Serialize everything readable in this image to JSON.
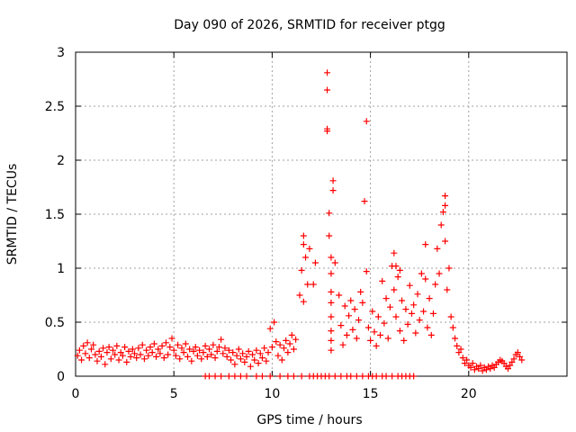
{
  "chart_data": {
    "type": "scatter",
    "title": "Day 090 of 2026, SRMTID for receiver ptgg",
    "xlabel": "GPS time / hours",
    "ylabel": "SRMTID / TECUs",
    "xlim": [
      0,
      25
    ],
    "ylim": [
      0,
      3
    ],
    "xticks": [
      0,
      5,
      10,
      15,
      20
    ],
    "yticks": [
      0,
      0.5,
      1,
      1.5,
      2,
      2.5,
      3
    ],
    "ytick_labels": [
      "0",
      "0.5",
      "1",
      "1.5",
      "2",
      "2.5",
      "3"
    ],
    "grid": true,
    "marker": "+",
    "color": "#ff0000",
    "series": [
      {
        "name": "SRMTID",
        "points": [
          [
            0.1,
            0.19
          ],
          [
            0.2,
            0.24
          ],
          [
            0.3,
            0.15
          ],
          [
            0.4,
            0.28
          ],
          [
            0.5,
            0.21
          ],
          [
            0.6,
            0.31
          ],
          [
            0.7,
            0.17
          ],
          [
            0.8,
            0.25
          ],
          [
            0.9,
            0.29
          ],
          [
            1.0,
            0.2
          ],
          [
            1.1,
            0.14
          ],
          [
            1.2,
            0.23
          ],
          [
            1.3,
            0.18
          ],
          [
            1.4,
            0.26
          ],
          [
            1.5,
            0.11
          ],
          [
            1.6,
            0.22
          ],
          [
            1.7,
            0.27
          ],
          [
            1.8,
            0.16
          ],
          [
            1.9,
            0.24
          ],
          [
            2.0,
            0.2
          ],
          [
            2.1,
            0.28
          ],
          [
            2.2,
            0.15
          ],
          [
            2.3,
            0.22
          ],
          [
            2.4,
            0.19
          ],
          [
            2.5,
            0.27
          ],
          [
            2.6,
            0.13
          ],
          [
            2.7,
            0.23
          ],
          [
            2.8,
            0.18
          ],
          [
            2.9,
            0.25
          ],
          [
            3.0,
            0.21
          ],
          [
            3.1,
            0.17
          ],
          [
            3.2,
            0.26
          ],
          [
            3.3,
            0.2
          ],
          [
            3.4,
            0.29
          ],
          [
            3.5,
            0.16
          ],
          [
            3.6,
            0.24
          ],
          [
            3.7,
            0.19
          ],
          [
            3.8,
            0.27
          ],
          [
            3.9,
            0.22
          ],
          [
            4.0,
            0.3
          ],
          [
            4.1,
            0.18
          ],
          [
            4.2,
            0.25
          ],
          [
            4.3,
            0.21
          ],
          [
            4.4,
            0.28
          ],
          [
            4.5,
            0.17
          ],
          [
            4.6,
            0.31
          ],
          [
            4.7,
            0.2
          ],
          [
            4.8,
            0.27
          ],
          [
            4.9,
            0.35
          ],
          [
            5.0,
            0.24
          ],
          [
            5.1,
            0.19
          ],
          [
            5.2,
            0.29
          ],
          [
            5.3,
            0.16
          ],
          [
            5.4,
            0.26
          ],
          [
            5.5,
            0.22
          ],
          [
            5.6,
            0.3
          ],
          [
            5.7,
            0.18
          ],
          [
            5.8,
            0.25
          ],
          [
            5.9,
            0.14
          ],
          [
            6.0,
            0.23
          ],
          [
            6.1,
            0.27
          ],
          [
            6.2,
            0.19
          ],
          [
            6.3,
            0.24
          ],
          [
            6.4,
            0.16
          ],
          [
            6.5,
            0.22
          ],
          [
            6.6,
            0.28
          ],
          [
            6.7,
            0.18
          ],
          [
            6.8,
            0.25
          ],
          [
            6.9,
            0.2
          ],
          [
            7.0,
            0.29
          ],
          [
            7.1,
            0.17
          ],
          [
            7.2,
            0.23
          ],
          [
            7.3,
            0.27
          ],
          [
            7.4,
            0.34
          ],
          [
            7.5,
            0.21
          ],
          [
            7.6,
            0.26
          ],
          [
            7.7,
            0.18
          ],
          [
            7.8,
            0.24
          ],
          [
            7.9,
            0.15
          ],
          [
            8.0,
            0.22
          ],
          [
            8.1,
            0.11
          ],
          [
            8.2,
            0.19
          ],
          [
            8.3,
            0.25
          ],
          [
            8.4,
            0.16
          ],
          [
            8.5,
            0.21
          ],
          [
            8.6,
            0.13
          ],
          [
            8.7,
            0.18
          ],
          [
            8.8,
            0.23
          ],
          [
            8.9,
            0.09
          ],
          [
            9.0,
            0.2
          ],
          [
            9.1,
            0.15
          ],
          [
            9.2,
            0.24
          ],
          [
            9.3,
            0.12
          ],
          [
            9.4,
            0.21
          ],
          [
            9.5,
            0.17
          ],
          [
            9.6,
            0.26
          ],
          [
            9.7,
            0.14
          ],
          [
            9.8,
            0.22
          ],
          [
            9.9,
            0.44
          ],
          [
            10.0,
            0.27
          ],
          [
            10.1,
            0.5
          ],
          [
            10.2,
            0.32
          ],
          [
            10.3,
            0.19
          ],
          [
            10.4,
            0.29
          ],
          [
            10.5,
            0.15
          ],
          [
            10.6,
            0.26
          ],
          [
            10.7,
            0.33
          ],
          [
            10.8,
            0.22
          ],
          [
            10.9,
            0.3
          ],
          [
            11.0,
            0.38
          ],
          [
            11.1,
            0.25
          ],
          [
            11.2,
            0.34
          ],
          [
            11.4,
            0.75
          ],
          [
            11.5,
            0.98
          ],
          [
            11.6,
            1.22
          ],
          [
            11.6,
            0.69
          ],
          [
            11.6,
            1.3
          ],
          [
            11.7,
            1.1
          ],
          [
            11.8,
            0.85
          ],
          [
            11.9,
            1.18
          ],
          [
            12.2,
            1.05
          ],
          [
            12.8,
            2.65
          ],
          [
            12.8,
            2.29
          ],
          [
            12.8,
            2.81
          ],
          [
            12.8,
            2.27
          ],
          [
            12.9,
            1.51
          ],
          [
            12.9,
            1.3
          ],
          [
            13.0,
            1.1
          ],
          [
            13.0,
            0.95
          ],
          [
            13.0,
            0.78
          ],
          [
            13.1,
            1.81
          ],
          [
            13.1,
            1.72
          ],
          [
            13.0,
            0.55
          ],
          [
            13.0,
            0.42
          ],
          [
            13.0,
            0.33
          ],
          [
            13.0,
            0.24
          ],
          [
            13.0,
            0.68
          ],
          [
            13.2,
            1.05
          ],
          [
            13.4,
            0.75
          ],
          [
            13.5,
            0.47
          ],
          [
            13.6,
            0.29
          ],
          [
            13.7,
            0.65
          ],
          [
            13.8,
            0.38
          ],
          [
            13.9,
            0.56
          ],
          [
            14.0,
            0.7
          ],
          [
            14.1,
            0.43
          ],
          [
            14.2,
            0.62
          ],
          [
            14.3,
            0.35
          ],
          [
            14.4,
            0.52
          ],
          [
            14.5,
            0.78
          ],
          [
            14.6,
            0.68
          ],
          [
            14.7,
            1.62
          ],
          [
            14.8,
            2.36
          ],
          [
            14.8,
            0.97
          ],
          [
            14.9,
            0.45
          ],
          [
            15.0,
            0.33
          ],
          [
            15.1,
            0.6
          ],
          [
            15.2,
            0.41
          ],
          [
            15.3,
            0.28
          ],
          [
            15.4,
            0.55
          ],
          [
            15.5,
            0.38
          ],
          [
            15.6,
            0.88
          ],
          [
            15.7,
            0.49
          ],
          [
            15.8,
            0.72
          ],
          [
            15.9,
            0.35
          ],
          [
            16.0,
            0.64
          ],
          [
            16.1,
            1.02
          ],
          [
            16.2,
            0.8
          ],
          [
            16.2,
            1.14
          ],
          [
            16.3,
            0.55
          ],
          [
            16.4,
            0.92
          ],
          [
            16.5,
            0.42
          ],
          [
            16.6,
            0.7
          ],
          [
            16.7,
            0.33
          ],
          [
            16.8,
            0.62
          ],
          [
            16.9,
            0.48
          ],
          [
            17.0,
            0.84
          ],
          [
            17.1,
            0.58
          ],
          [
            17.2,
            0.66
          ],
          [
            17.3,
            0.4
          ],
          [
            17.4,
            0.76
          ],
          [
            17.5,
            0.52
          ],
          [
            17.6,
            0.95
          ],
          [
            17.7,
            0.6
          ],
          [
            17.8,
            1.22
          ],
          [
            17.9,
            0.45
          ],
          [
            18.0,
            0.72
          ],
          [
            18.1,
            0.38
          ],
          [
            18.2,
            0.58
          ],
          [
            18.3,
            0.85
          ],
          [
            18.4,
            1.18
          ],
          [
            18.5,
            0.95
          ],
          [
            18.6,
            1.4
          ],
          [
            18.7,
            1.52
          ],
          [
            18.8,
            1.67
          ],
          [
            18.8,
            1.58
          ],
          [
            18.8,
            1.25
          ],
          [
            18.9,
            0.8
          ],
          [
            19.0,
            1.0
          ],
          [
            19.1,
            0.55
          ],
          [
            19.2,
            0.45
          ],
          [
            19.3,
            0.35
          ],
          [
            19.4,
            0.28
          ],
          [
            19.5,
            0.22
          ],
          [
            19.6,
            0.25
          ],
          [
            19.7,
            0.17
          ],
          [
            19.8,
            0.12
          ],
          [
            19.9,
            0.15
          ],
          [
            20.0,
            0.1
          ],
          [
            20.1,
            0.08
          ],
          [
            20.2,
            0.12
          ],
          [
            20.3,
            0.06
          ],
          [
            20.4,
            0.09
          ],
          [
            20.5,
            0.07
          ],
          [
            20.6,
            0.1
          ],
          [
            20.7,
            0.05
          ],
          [
            20.8,
            0.08
          ],
          [
            20.9,
            0.06
          ],
          [
            21.0,
            0.09
          ],
          [
            21.1,
            0.07
          ],
          [
            21.2,
            0.1
          ],
          [
            21.3,
            0.08
          ],
          [
            21.4,
            0.11
          ],
          [
            21.5,
            0.13
          ],
          [
            21.6,
            0.15
          ],
          [
            21.7,
            0.14
          ],
          [
            21.8,
            0.12
          ],
          [
            21.9,
            0.09
          ],
          [
            22.0,
            0.07
          ],
          [
            22.1,
            0.1
          ],
          [
            22.2,
            0.13
          ],
          [
            22.3,
            0.16
          ],
          [
            22.4,
            0.2
          ],
          [
            22.5,
            0.22
          ],
          [
            22.6,
            0.18
          ],
          [
            22.7,
            0.15
          ],
          [
            16.3,
            1.02
          ],
          [
            12.1,
            0.85
          ],
          [
            16.5,
            0.98
          ],
          [
            17.8,
            0.9
          ],
          [
            6.6,
            0.0
          ],
          [
            6.8,
            0.0
          ],
          [
            7.1,
            0.0
          ],
          [
            7.4,
            0.0
          ],
          [
            7.8,
            0.0
          ],
          [
            8.1,
            0.0
          ],
          [
            8.4,
            0.0
          ],
          [
            8.7,
            0.0
          ],
          [
            9.2,
            0.0
          ],
          [
            9.5,
            0.0
          ],
          [
            9.9,
            0.0
          ],
          [
            10.4,
            0.0
          ],
          [
            10.8,
            0.0
          ],
          [
            11.1,
            0.0
          ],
          [
            11.5,
            0.0
          ],
          [
            11.9,
            0.0
          ],
          [
            12.1,
            0.0
          ],
          [
            12.3,
            0.0
          ],
          [
            12.5,
            0.0
          ],
          [
            12.7,
            0.0
          ],
          [
            12.9,
            0.0
          ],
          [
            13.2,
            0.0
          ],
          [
            13.5,
            0.0
          ],
          [
            13.8,
            0.0
          ],
          [
            14.0,
            0.0
          ],
          [
            14.3,
            0.0
          ],
          [
            14.6,
            0.0
          ],
          [
            14.9,
            0.0
          ],
          [
            15.1,
            0.0
          ],
          [
            15.3,
            0.0
          ],
          [
            15.6,
            0.0
          ],
          [
            15.8,
            0.0
          ],
          [
            16.1,
            0.0
          ],
          [
            16.4,
            0.0
          ],
          [
            16.6,
            0.0
          ],
          [
            16.8,
            0.0
          ],
          [
            17.0,
            0.0
          ],
          [
            17.2,
            0.0
          ]
        ]
      }
    ]
  }
}
